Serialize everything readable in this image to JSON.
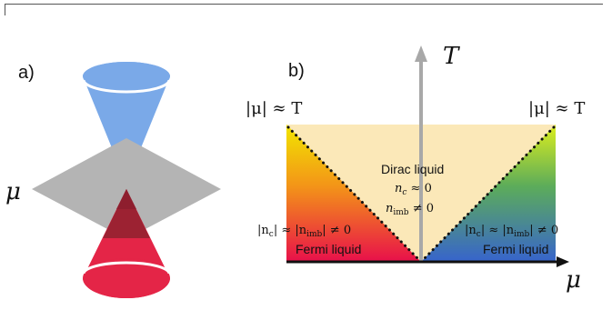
{
  "panel_a": {
    "label": "a)",
    "mu_symbol": "μ",
    "colors": {
      "upper_cone": "#7aa9e8",
      "lower_cone": "#e42547",
      "plane": "#b0b0b0",
      "overlap": "#9c2232"
    }
  },
  "panel_b": {
    "label": "b)",
    "axis_t": "T",
    "axis_mu": "μ",
    "boundary_left": "|μ| ≈ T",
    "boundary_right": "|μ| ≈ T",
    "center_region": {
      "name": "Dirac liquid",
      "line1": "n",
      "line1_sub": "c",
      "line1_rest": " ≈ 0",
      "line2": "n",
      "line2_sub": "imb",
      "line2_rest": " ≠ 0"
    },
    "left_region": {
      "name": "Fermi liquid",
      "condition": "|n",
      "condition_sub1": "c",
      "condition_mid": "| ≈ |n",
      "condition_sub2": "imb",
      "condition_end": "| ≠ 0"
    },
    "right_region": {
      "name": "Fermi liquid",
      "condition": "|n",
      "condition_sub1": "c",
      "condition_mid": "| ≈ |n",
      "condition_sub2": "imb",
      "condition_end": "| ≠ 0"
    },
    "colors": {
      "dirac": "#fbe8b8",
      "fermi_left_top": "#f0e400",
      "fermi_left_bottom": "#e8104a",
      "fermi_right_top": "#d8ea20",
      "fermi_right_bottom": "#3a64c8",
      "axis_t": "#a8a8a8"
    }
  }
}
